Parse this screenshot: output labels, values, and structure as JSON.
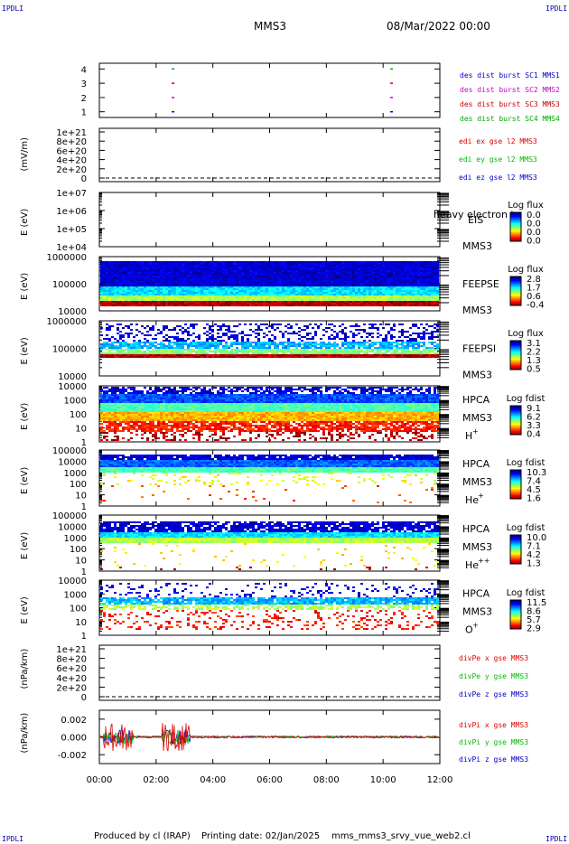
{
  "header": {
    "corner_label": "IPDLI",
    "spacecraft": "MMS3",
    "datetime": "08/Mar/2022 00:00"
  },
  "footer": {
    "produced_by": "Produced by cl (IRAP)",
    "printing_date": "Printing date: 02/Jan/2025",
    "file": "mms_mms3_srvy_vue_web2.cl"
  },
  "colors": {
    "mms1": "#0000cc",
    "mms2": "#cc00cc",
    "mms3": "#cc0000",
    "mms4": "#00aa00",
    "x": "#dd0000",
    "y": "#00bb00",
    "z": "#0000cc"
  },
  "chart_data": [
    {
      "type": "scatter",
      "id": "burst",
      "ylabel": "",
      "yticks": [
        "1",
        "2",
        "3",
        "4"
      ],
      "ylim": [
        0.6,
        4.4
      ],
      "legend": [
        {
          "label": "des dist burst SC1 MMS1",
          "color": "#0000cc"
        },
        {
          "label": "des dist burst SC2 MMS2",
          "color": "#cc00cc"
        },
        {
          "label": "des dist burst SC3 MMS3",
          "color": "#cc0000"
        },
        {
          "label": "des dist burst SC4 MMS4",
          "color": "#00aa00"
        }
      ],
      "marks_hours": [
        2.55,
        10.25
      ],
      "levels": [
        1,
        2,
        3,
        4
      ]
    },
    {
      "type": "line",
      "id": "edi",
      "ylabel": "(mV/m)",
      "yticks": [
        "1e+21",
        "8e+20",
        "6e+20",
        "4e+20",
        "2e+20",
        "0"
      ],
      "ylim": [
        0,
        1e+21
      ],
      "dashed_zero": true,
      "legend": [
        {
          "label": "edi ex gse l2 MMS3",
          "color": "#dd0000"
        },
        {
          "label": "edi ey gse l2 MMS3",
          "color": "#00bb00"
        },
        {
          "label": "edi ez gse l2 MMS3",
          "color": "#0000cc"
        }
      ]
    },
    {
      "type": "heatmap",
      "id": "eis",
      "ylabel": "E (eV)",
      "yticks": [
        "1e+07",
        "1e+06",
        "1e+05",
        "1e+04"
      ],
      "instrument": "EIS",
      "overlay_label": "heavy electron to",
      "spacecraft": "MMS3",
      "colorbar_title": "Log flux",
      "colorbar_ticks": [
        "0.0",
        "0.0",
        "0.0",
        "0.0"
      ]
    },
    {
      "type": "heatmap",
      "id": "feepse",
      "ylabel": "E (eV)",
      "yticks": [
        "1000000",
        "100000",
        "10000"
      ],
      "instrument": "FEEPSE",
      "spacecraft": "MMS3",
      "colorbar_title": "Log flux",
      "colorbar_ticks": [
        "2.8",
        "1.7",
        "0.6",
        "-0.4"
      ]
    },
    {
      "type": "heatmap",
      "id": "feepsi",
      "ylabel": "E (eV)",
      "yticks": [
        "1000000",
        "100000",
        "10000"
      ],
      "instrument": "FEEPSI",
      "spacecraft": "MMS3",
      "colorbar_title": "Log flux",
      "colorbar_ticks": [
        "3.1",
        "2.2",
        "1.3",
        "0.5"
      ]
    },
    {
      "type": "heatmap",
      "id": "hpca_h",
      "ylabel": "E (eV)",
      "yticks": [
        "10000",
        "1000",
        "100",
        "10",
        "1"
      ],
      "instrument": "HPCA",
      "spacecraft": "MMS3",
      "species": "H",
      "species_charge": "+",
      "colorbar_title": "Log fdist",
      "colorbar_ticks": [
        "9.1",
        "6.2",
        "3.3",
        "0.4"
      ]
    },
    {
      "type": "heatmap",
      "id": "hpca_he",
      "ylabel": "E (eV)",
      "yticks": [
        "100000",
        "10000",
        "1000",
        "100",
        "10",
        "1"
      ],
      "instrument": "HPCA",
      "spacecraft": "MMS3",
      "species": "He",
      "species_charge": "+",
      "colorbar_title": "Log fdist",
      "colorbar_ticks": [
        "10.3",
        "7.4",
        "4.5",
        "1.6"
      ]
    },
    {
      "type": "heatmap",
      "id": "hpca_hepp",
      "ylabel": "E (eV)",
      "yticks": [
        "100000",
        "10000",
        "1000",
        "100",
        "10",
        "1"
      ],
      "instrument": "HPCA",
      "spacecraft": "MMS3",
      "species": "He",
      "species_charge": "++",
      "colorbar_title": "Log fdist",
      "colorbar_ticks": [
        "10.0",
        "7.1",
        "4.2",
        "1.3"
      ]
    },
    {
      "type": "heatmap",
      "id": "hpca_o",
      "ylabel": "E (eV)",
      "yticks": [
        "10000",
        "1000",
        "100",
        "10",
        "1"
      ],
      "instrument": "HPCA",
      "spacecraft": "MMS3",
      "species": "O",
      "species_charge": "+",
      "colorbar_title": "Log fdist",
      "colorbar_ticks": [
        "11.5",
        "8.6",
        "5.7",
        "2.9"
      ]
    },
    {
      "type": "line",
      "id": "divpe",
      "ylabel": "(nPa/km)",
      "yticks": [
        "1e+21",
        "8e+20",
        "6e+20",
        "4e+20",
        "2e+20",
        "0"
      ],
      "ylim": [
        0,
        1e+21
      ],
      "dashed_zero": true,
      "legend": [
        {
          "label": "divPe x gse MMS3",
          "color": "#dd0000"
        },
        {
          "label": "divPe y gse MMS3",
          "color": "#00bb00"
        },
        {
          "label": "divPe z gse MMS3",
          "color": "#0000cc"
        }
      ]
    },
    {
      "type": "line",
      "id": "divpi",
      "ylabel": "(nPa/km)",
      "yticks": [
        "0.002",
        "0.000",
        "-0.002"
      ],
      "ylim": [
        -0.003,
        0.003
      ],
      "legend": [
        {
          "label": "divPi x gse MMS3",
          "color": "#dd0000"
        },
        {
          "label": "divPi y gse MMS3",
          "color": "#00bb00"
        },
        {
          "label": "divPi z gse MMS3",
          "color": "#0000cc"
        }
      ],
      "spikes_hours": [
        [
          0.1,
          1.2
        ],
        [
          2.2,
          3.2
        ]
      ]
    }
  ],
  "x_axis": {
    "ticks": [
      "00:00",
      "02:00",
      "04:00",
      "06:00",
      "08:00",
      "10:00",
      "12:00"
    ],
    "range_hours": [
      0,
      12
    ]
  }
}
